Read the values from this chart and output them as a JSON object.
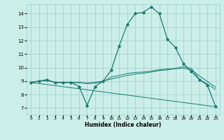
{
  "xlabel": "Humidex (Indice chaleur)",
  "xlim": [
    -0.5,
    23.5
  ],
  "ylim": [
    6.5,
    14.7
  ],
  "xticks": [
    0,
    1,
    2,
    3,
    4,
    5,
    6,
    7,
    8,
    9,
    10,
    11,
    12,
    13,
    14,
    15,
    16,
    17,
    18,
    19,
    20,
    21,
    22,
    23
  ],
  "yticks": [
    7,
    8,
    9,
    10,
    11,
    12,
    13,
    14
  ],
  "bg_color": "#cceee9",
  "grid_color": "#99cccc",
  "line_color": "#1a7a6e",
  "main_line": {
    "x": [
      0,
      1,
      2,
      3,
      4,
      5,
      6,
      7,
      8,
      9,
      10,
      11,
      12,
      13,
      14,
      15,
      16,
      17,
      18,
      19,
      20,
      21,
      22,
      23
    ],
    "y": [
      8.9,
      9.0,
      9.1,
      8.9,
      8.9,
      8.9,
      8.6,
      7.2,
      8.6,
      9.0,
      9.8,
      11.6,
      13.2,
      14.0,
      14.1,
      14.5,
      14.0,
      12.1,
      11.5,
      10.3,
      9.7,
      9.1,
      8.7,
      7.1
    ]
  },
  "extra_lines": [
    {
      "x": [
        0,
        1,
        2,
        3,
        4,
        5,
        6,
        7,
        8,
        9,
        10,
        11,
        12,
        13,
        14,
        15,
        16,
        17,
        18,
        19,
        20,
        21,
        22,
        23
      ],
      "y": [
        8.9,
        9.0,
        9.05,
        8.9,
        8.9,
        8.9,
        8.9,
        8.85,
        8.9,
        9.0,
        9.15,
        9.28,
        9.42,
        9.52,
        9.58,
        9.67,
        9.78,
        9.83,
        9.92,
        9.95,
        9.83,
        9.38,
        8.97,
        8.55
      ]
    },
    {
      "x": [
        0,
        1,
        2,
        3,
        4,
        5,
        6,
        7,
        8,
        9,
        10,
        11,
        12,
        13,
        14,
        15,
        16,
        17,
        18,
        19,
        20,
        21,
        22,
        23
      ],
      "y": [
        8.9,
        9.0,
        9.05,
        8.9,
        8.9,
        8.9,
        8.88,
        8.82,
        8.85,
        8.95,
        9.3,
        9.42,
        9.56,
        9.64,
        9.67,
        9.74,
        9.84,
        9.9,
        9.94,
        10.07,
        9.94,
        9.12,
        8.78,
        8.38
      ]
    },
    {
      "x": [
        0,
        23
      ],
      "y": [
        8.9,
        7.1
      ]
    }
  ],
  "xtick_fontsize": 4.2,
  "ytick_fontsize": 5.0,
  "xlabel_fontsize": 5.5
}
